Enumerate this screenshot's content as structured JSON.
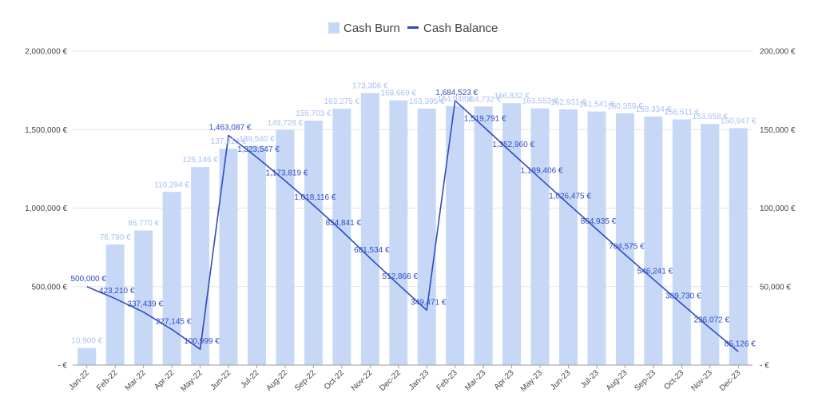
{
  "chart_data": {
    "type": "bar+line",
    "title": "",
    "legend": {
      "placement": "top-center",
      "entries": [
        "Cash Burn",
        "Cash Balance"
      ]
    },
    "categories": [
      "Jan-22",
      "Feb-22",
      "Mar-22",
      "Apr-22",
      "May-22",
      "Jun-22",
      "Jul-22",
      "Aug-22",
      "Sep-22",
      "Oct-22",
      "Nov-22",
      "Dec-22",
      "Jan-23",
      "Feb-23",
      "Mar-23",
      "Apr-23",
      "May-23",
      "Jun-23",
      "Jul-23",
      "Aug-23",
      "Sep-23",
      "Oct-23",
      "Nov-23",
      "Dec-23"
    ],
    "series": [
      {
        "name": "Cash Burn",
        "type": "bar",
        "axis": "right",
        "color": "#c6d8f6",
        "label_color": "#a9c0ef",
        "values": [
          10900,
          76790,
          85770,
          110294,
          126146,
          137813,
          139540,
          149728,
          155703,
          163275,
          173306,
          168669,
          163395,
          164948,
          164732,
          166832,
          163553,
          162931,
          161541,
          160359,
          158334,
          156511,
          153658,
          150947
        ],
        "labels": [
          "10,900 €",
          "76,790 €",
          "85,770 €",
          "110,294 €",
          "126,146 €",
          "137,813 €",
          "139,540 €",
          "149,728 €",
          "155,703 €",
          "163,275 €",
          "173,306 €",
          "168,669 €",
          "163,395 €",
          "164,948 €",
          "164,732 €",
          "166,832 €",
          "163,553 €",
          "162,931 €",
          "161,541 €",
          "160,359 €",
          "158,334 €",
          "156,511 €",
          "153,658 €",
          "150,947 €"
        ]
      },
      {
        "name": "Cash Balance",
        "type": "line",
        "axis": "left",
        "color": "#2f4bc4",
        "values": [
          500000,
          423210,
          337439,
          227145,
          100999,
          1463087,
          1323547,
          1173819,
          1018116,
          854841,
          681534,
          512866,
          349471,
          1684523,
          1519791,
          1352960,
          1189406,
          1026475,
          864935,
          704575,
          546241,
          389730,
          236072,
          85126
        ],
        "labels": [
          "500,000 €",
          "423,210 €",
          "337,439 €",
          "227,145 €",
          "100,999 €",
          "1,463,087 €",
          "1,323,547 €",
          "1,173,819 €",
          "1,018,116 €",
          "854,841 €",
          "681,534 €",
          "512,866 €",
          "349,471 €",
          "1,684,523 €",
          "1,519,791 €",
          "1,352,960 €",
          "1,189,406 €",
          "1,026,475 €",
          "864,935 €",
          "704,575 €",
          "546,241 €",
          "389,730 €",
          "236,072 €",
          "85,126 €"
        ]
      }
    ],
    "left_axis": {
      "min": 0,
      "max": 2000000,
      "ticks": [
        0,
        500000,
        1000000,
        1500000,
        2000000
      ],
      "tick_labels": [
        "- €",
        "500,000 €",
        "1,000,000 €",
        "1,500,000 €",
        "2,000,000 €"
      ]
    },
    "right_axis": {
      "min": 0,
      "max": 200000,
      "ticks": [
        0,
        50000,
        100000,
        150000,
        200000
      ],
      "tick_labels": [
        "- €",
        "50,000 €",
        "100,000 €",
        "150,000 €",
        "200,000 €"
      ]
    },
    "grid": true,
    "gridline_color": "#e3e3e3",
    "axis_color": "#9e9e9e"
  }
}
